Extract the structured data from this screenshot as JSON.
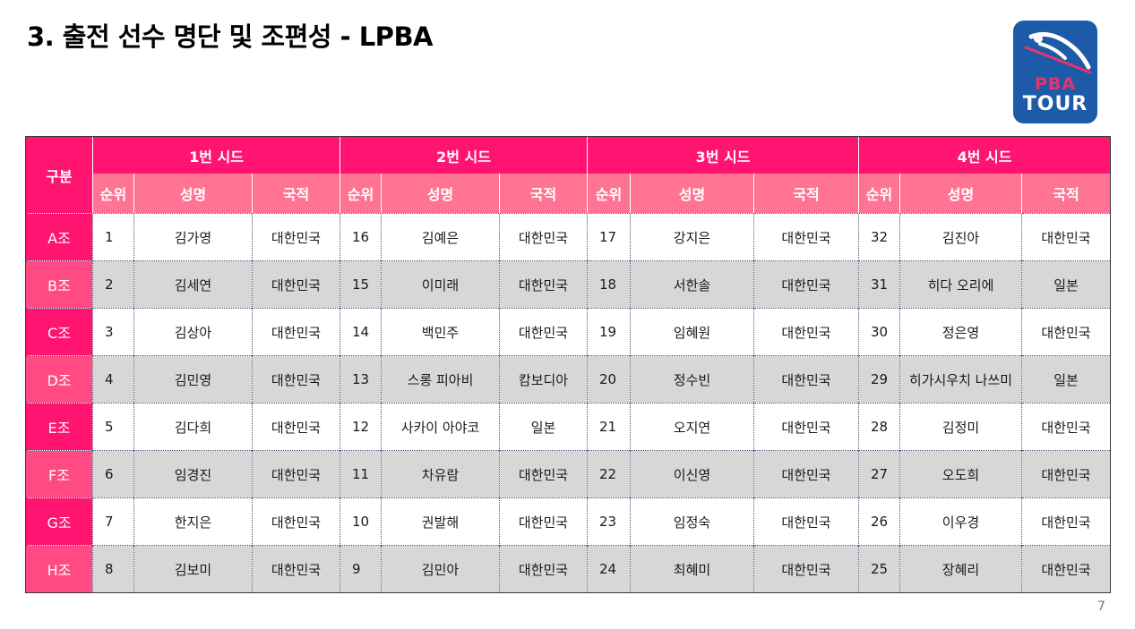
{
  "title": "3. 출전 선수 명단 및 조편성 - LPBA",
  "logo": {
    "line1": "PBA",
    "line2": "TOUR",
    "bg": "#1d5aa8",
    "accent": "#e8336b"
  },
  "table": {
    "corner": "구분",
    "seeds": [
      "1번 시드",
      "2번 시드",
      "3번 시드",
      "4번 시드"
    ],
    "subheaders": {
      "rank": "순위",
      "name": "성명",
      "country": "국적"
    },
    "rows": [
      {
        "group": "A조",
        "seeds": [
          {
            "rank": "1",
            "name": "김가영",
            "country": "대한민국"
          },
          {
            "rank": "16",
            "name": "김예은",
            "country": "대한민국"
          },
          {
            "rank": "17",
            "name": "강지은",
            "country": "대한민국"
          },
          {
            "rank": "32",
            "name": "김진아",
            "country": "대한민국"
          }
        ]
      },
      {
        "group": "B조",
        "seeds": [
          {
            "rank": "2",
            "name": "김세연",
            "country": "대한민국"
          },
          {
            "rank": "15",
            "name": "이미래",
            "country": "대한민국"
          },
          {
            "rank": "18",
            "name": "서한솔",
            "country": "대한민국"
          },
          {
            "rank": "31",
            "name": "히다 오리에",
            "country": "일본"
          }
        ]
      },
      {
        "group": "C조",
        "seeds": [
          {
            "rank": "3",
            "name": "김상아",
            "country": "대한민국"
          },
          {
            "rank": "14",
            "name": "백민주",
            "country": "대한민국"
          },
          {
            "rank": "19",
            "name": "임혜원",
            "country": "대한민국"
          },
          {
            "rank": "30",
            "name": "정은영",
            "country": "대한민국"
          }
        ]
      },
      {
        "group": "D조",
        "seeds": [
          {
            "rank": "4",
            "name": "김민영",
            "country": "대한민국"
          },
          {
            "rank": "13",
            "name": "스롱 피아비",
            "country": "캄보디아"
          },
          {
            "rank": "20",
            "name": "정수빈",
            "country": "대한민국"
          },
          {
            "rank": "29",
            "name": "히가시우치 나쓰미",
            "country": "일본"
          }
        ]
      },
      {
        "group": "E조",
        "seeds": [
          {
            "rank": "5",
            "name": "김다희",
            "country": "대한민국"
          },
          {
            "rank": "12",
            "name": "사카이 아야코",
            "country": "일본"
          },
          {
            "rank": "21",
            "name": "오지연",
            "country": "대한민국"
          },
          {
            "rank": "28",
            "name": "김정미",
            "country": "대한민국"
          }
        ]
      },
      {
        "group": "F조",
        "seeds": [
          {
            "rank": "6",
            "name": "임경진",
            "country": "대한민국"
          },
          {
            "rank": "11",
            "name": "차유람",
            "country": "대한민국"
          },
          {
            "rank": "22",
            "name": "이신영",
            "country": "대한민국"
          },
          {
            "rank": "27",
            "name": "오도희",
            "country": "대한민국"
          }
        ]
      },
      {
        "group": "G조",
        "seeds": [
          {
            "rank": "7",
            "name": "한지은",
            "country": "대한민국"
          },
          {
            "rank": "10",
            "name": "권발해",
            "country": "대한민국"
          },
          {
            "rank": "23",
            "name": "임정숙",
            "country": "대한민국"
          },
          {
            "rank": "26",
            "name": "이우경",
            "country": "대한민국"
          }
        ]
      },
      {
        "group": "H조",
        "seeds": [
          {
            "rank": "8",
            "name": "김보미",
            "country": "대한민국"
          },
          {
            "rank": "9",
            "name": "김민아",
            "country": "대한민국"
          },
          {
            "rank": "24",
            "name": "최혜미",
            "country": "대한민국"
          },
          {
            "rank": "25",
            "name": "장혜리",
            "country": "대한민국"
          }
        ]
      }
    ]
  },
  "page_number": "7",
  "colors": {
    "header": "#ff1471",
    "subheader": "#ff7493",
    "alt_row": "#d7d7d7",
    "group_alt": "#ff4a84"
  }
}
